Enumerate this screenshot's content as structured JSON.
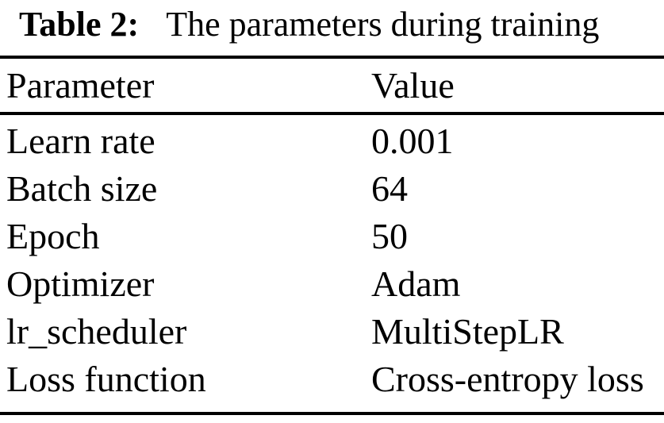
{
  "caption": {
    "label": "Table 2:",
    "text": "The parameters during training"
  },
  "table": {
    "headers": {
      "param": "Parameter",
      "value": "Value"
    },
    "rows": [
      {
        "param": "Learn rate",
        "value": "0.001"
      },
      {
        "param": "Batch size",
        "value": "64"
      },
      {
        "param": "Epoch",
        "value": "50"
      },
      {
        "param": "Optimizer",
        "value": "Adam"
      },
      {
        "param": "lr_scheduler",
        "value": "MultiStepLR"
      },
      {
        "param": "Loss function",
        "value": "Cross-entropy loss"
      }
    ]
  },
  "colors": {
    "background": "#ffffff",
    "text": "#000000",
    "rule": "#000000"
  }
}
